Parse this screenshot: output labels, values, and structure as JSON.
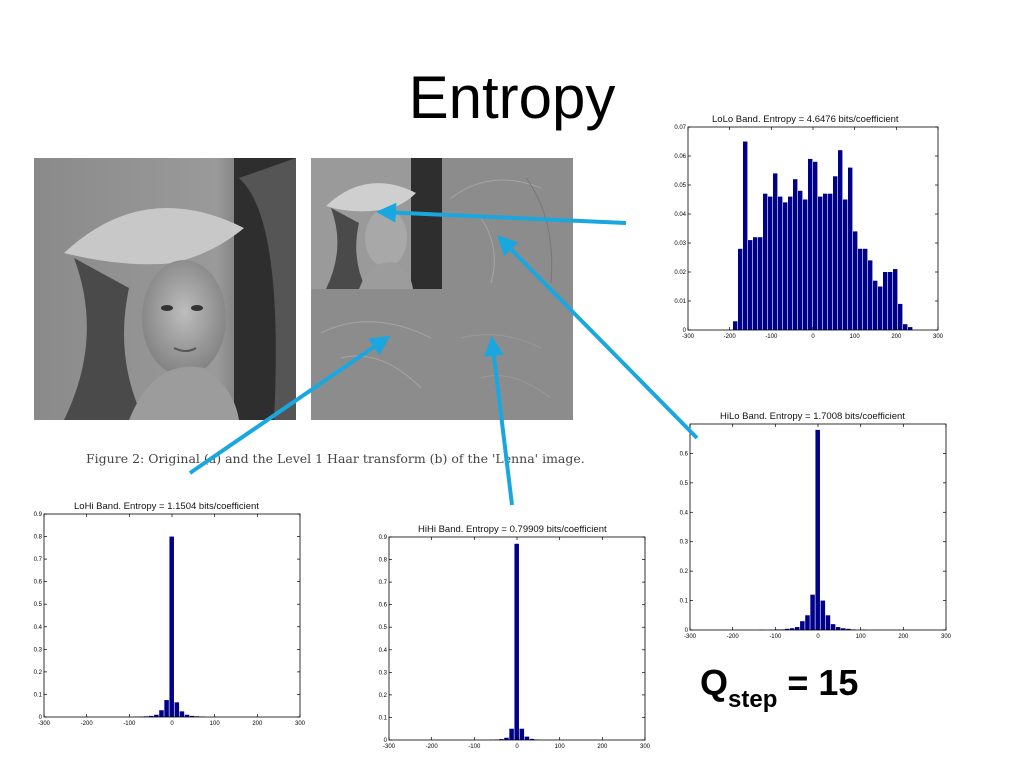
{
  "slide": {
    "title": "Entropy",
    "caption": "Figure 2: Original (a) and the Level 1 Haar transform (b) of the 'Lenna' image.",
    "qstep": {
      "prefix": "Q",
      "subscript": "step",
      "suffix": " = 15"
    }
  },
  "colors": {
    "bar": "#00008b",
    "arrow": "#1aa7e0",
    "axis": "#000000"
  },
  "chart_data": [
    {
      "type": "bar",
      "title": "LoLo Band. Entropy = 4.6476 bits/coefficient",
      "xlim": [
        -300,
        300
      ],
      "ylim": [
        0,
        0.07
      ],
      "xticks": [
        -300,
        -200,
        -100,
        0,
        100,
        200,
        300
      ],
      "xtick_labels": [
        "-300",
        "-200",
        "-100",
        "0",
        "100",
        "200",
        "300"
      ],
      "yticks": [
        0,
        0.01,
        0.02,
        0.03,
        0.04,
        0.05,
        0.06,
        0.07
      ],
      "ytick_labels": [
        "0",
        "0.01",
        "0.02",
        "0.03",
        "0.04",
        "0.05",
        "0.06",
        "0.07"
      ],
      "bin_width": 12,
      "x": [
        -186,
        -174,
        -162,
        -150,
        -138,
        -126,
        -114,
        -102,
        -90,
        -78,
        -66,
        -54,
        -42,
        -30,
        -18,
        -6,
        6,
        18,
        30,
        42,
        54,
        66,
        78,
        90,
        102,
        114,
        126,
        138,
        150,
        162,
        174,
        186,
        198,
        210,
        222,
        234
      ],
      "values": [
        0.003,
        0.028,
        0.065,
        0.031,
        0.032,
        0.032,
        0.047,
        0.046,
        0.054,
        0.046,
        0.044,
        0.046,
        0.052,
        0.048,
        0.045,
        0.059,
        0.058,
        0.046,
        0.047,
        0.047,
        0.053,
        0.062,
        0.045,
        0.056,
        0.034,
        0.028,
        0.028,
        0.024,
        0.017,
        0.015,
        0.02,
        0.02,
        0.021,
        0.009,
        0.002,
        0.001
      ],
      "grid": false
    },
    {
      "type": "bar",
      "title": "HiLo Band. Entropy = 1.7008 bits/coefficient",
      "xlim": [
        -300,
        300
      ],
      "ylim": [
        0,
        0.7
      ],
      "xticks": [
        -300,
        -200,
        -100,
        0,
        100,
        200,
        300
      ],
      "xtick_labels": [
        "-300",
        "-200",
        "-100",
        "0",
        "100",
        "200",
        "300"
      ],
      "yticks": [
        0,
        0.1,
        0.2,
        0.3,
        0.4,
        0.5,
        0.6
      ],
      "ytick_labels": [
        "0",
        "0.1",
        "0.2",
        "0.3",
        "0.4",
        "0.5",
        "0.6"
      ],
      "bin_width": 12,
      "x": [
        -132,
        -108,
        -96,
        -84,
        -72,
        -60,
        -48,
        -36,
        -24,
        -12,
        0,
        12,
        24,
        36,
        48,
        60,
        72,
        84,
        108
      ],
      "values": [
        0.001,
        0.001,
        0.002,
        0.002,
        0.004,
        0.006,
        0.01,
        0.03,
        0.05,
        0.12,
        0.68,
        0.1,
        0.05,
        0.02,
        0.01,
        0.006,
        0.004,
        0.002,
        0.001
      ],
      "grid": false
    },
    {
      "type": "bar",
      "title": "LoHi Band. Entropy = 1.1504 bits/coefficient",
      "xlim": [
        -300,
        300
      ],
      "ylim": [
        0,
        0.9
      ],
      "xticks": [
        -300,
        -200,
        -100,
        0,
        100,
        200,
        300
      ],
      "xtick_labels": [
        "-300",
        "-200",
        "-100",
        "0",
        "100",
        "200",
        "300"
      ],
      "yticks": [
        0,
        0.1,
        0.2,
        0.3,
        0.4,
        0.5,
        0.6,
        0.7,
        0.8,
        0.9
      ],
      "ytick_labels": [
        "0",
        "0.1",
        "0.2",
        "0.3",
        "0.4",
        "0.5",
        "0.6",
        "0.7",
        "0.8",
        "0.9"
      ],
      "bin_width": 12,
      "x": [
        -84,
        -72,
        -60,
        -48,
        -36,
        -24,
        -12,
        0,
        12,
        24,
        36,
        48,
        60,
        72
      ],
      "values": [
        0.001,
        0.002,
        0.003,
        0.005,
        0.01,
        0.03,
        0.075,
        0.8,
        0.065,
        0.025,
        0.01,
        0.005,
        0.003,
        0.002
      ],
      "grid": false
    },
    {
      "type": "bar",
      "title": "HiHi Band. Entropy = 0.79909 bits/coefficient",
      "xlim": [
        -300,
        300
      ],
      "ylim": [
        0,
        0.9
      ],
      "xticks": [
        -300,
        -200,
        -100,
        0,
        100,
        200,
        300
      ],
      "xtick_labels": [
        "-300",
        "-200",
        "-100",
        "0",
        "100",
        "200",
        "300"
      ],
      "yticks": [
        0,
        0.1,
        0.2,
        0.3,
        0.4,
        0.5,
        0.6,
        0.7,
        0.8,
        0.9
      ],
      "ytick_labels": [
        "0",
        "0.1",
        "0.2",
        "0.3",
        "0.4",
        "0.5",
        "0.6",
        "0.7",
        "0.8",
        "0.9"
      ],
      "bin_width": 12,
      "x": [
        -60,
        -48,
        -36,
        -24,
        -12,
        0,
        12,
        24,
        36,
        48
      ],
      "values": [
        0.001,
        0.002,
        0.004,
        0.01,
        0.05,
        0.87,
        0.05,
        0.015,
        0.005,
        0.002
      ],
      "grid": false
    }
  ]
}
